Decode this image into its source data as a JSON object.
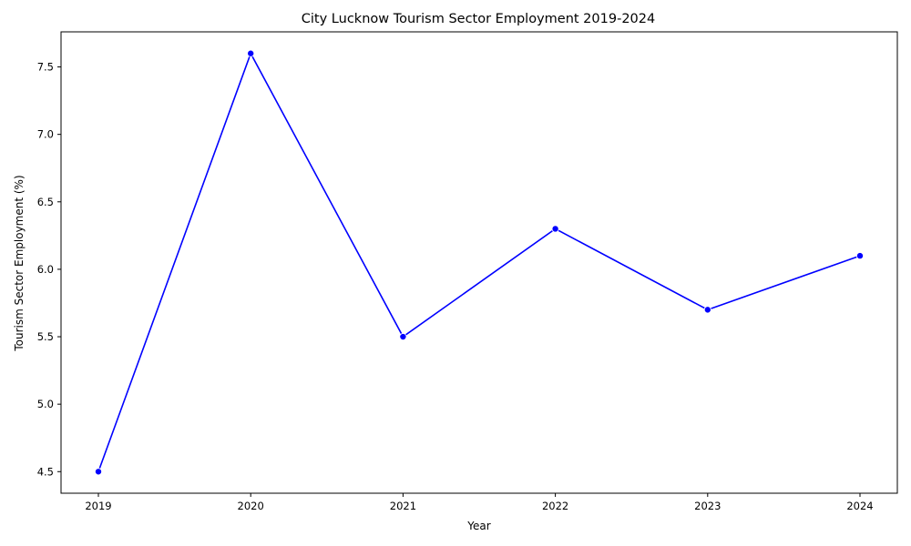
{
  "chart_data": {
    "type": "line",
    "title": "City Lucknow Tourism Sector Employment 2019-2024",
    "xlabel": "Year",
    "ylabel": "Tourism Sector Employment (%)",
    "x": [
      "2019",
      "2020",
      "2021",
      "2022",
      "2023",
      "2024"
    ],
    "series": [
      {
        "color": "#0000ff",
        "values": [
          4.5,
          7.6,
          5.5,
          6.3,
          5.7,
          6.1
        ]
      }
    ],
    "yticks": [
      "4.5",
      "5.0",
      "5.5",
      "6.0",
      "6.5",
      "7.0",
      "7.5"
    ],
    "ylim": [
      4.34,
      7.76
    ],
    "grid": false,
    "legend": "none",
    "marker": "circle"
  }
}
